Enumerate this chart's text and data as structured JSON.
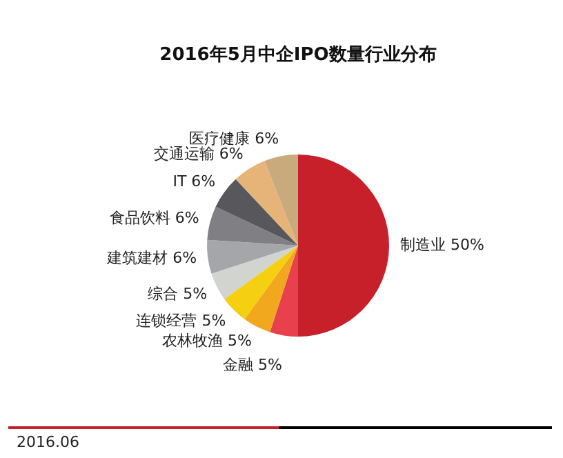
{
  "chart_data": {
    "type": "pie",
    "title": "2016年5月中企IPO数量行业分布",
    "categories": [
      "制造业",
      "金融",
      "农林牧渔",
      "连锁经营",
      "综合",
      "建筑建材",
      "食品饮料",
      "IT",
      "交通运输",
      "医疗健康"
    ],
    "values": [
      50,
      5,
      5,
      5,
      5,
      6,
      6,
      6,
      6,
      6
    ],
    "value_labels": [
      "50%",
      "5%",
      "5%",
      "5%",
      "5%",
      "6%",
      "6%",
      "6%",
      "6%",
      "6%"
    ],
    "colors": [
      "#c8202a",
      "#e8404c",
      "#f2a81e",
      "#f5d010",
      "#d2d4cf",
      "#a5a6aa",
      "#808084",
      "#58585c",
      "#e6b478",
      "#c8aa7c"
    ],
    "annotations": [
      "2016.06"
    ],
    "legend": false
  }
}
